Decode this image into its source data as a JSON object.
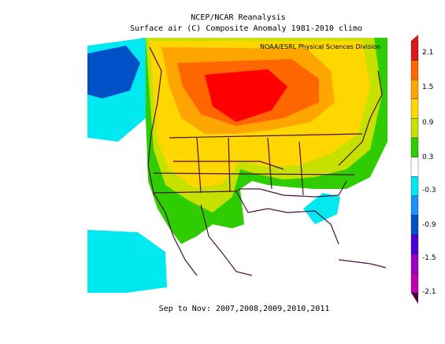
{
  "header": {
    "title": "NCEP/NCAR Reanalysis",
    "subtitle": "Surface air (C) Composite Anomaly 1981-2010 climo",
    "source": "NOAA/ESRL Physical Sciences Division"
  },
  "footer": {
    "period": "Sep to Nov: 2007,2008,2009,2010,2011"
  },
  "colorbar": {
    "labels": [
      "2.1",
      "1.5",
      "0.9",
      "0.3",
      "-0.3",
      "-0.9",
      "-1.5",
      "-2.1"
    ],
    "colors": [
      "#d7191c",
      "#ff6600",
      "#ffa500",
      "#ffd700",
      "#c6e000",
      "#2ecc00",
      "#ffffff",
      "#00e8f0",
      "#1e90ff",
      "#0050c8",
      "#4b00d6",
      "#9a00c8",
      "#c000b0"
    ]
  },
  "map": {
    "region": "North America",
    "anomaly_colors": {
      "strong_warm": "#ff0000",
      "warm": "#ff6600",
      "moderate_warm": "#ffa500",
      "mild_warm": "#ffd700",
      "slight_warm": "#c6e000",
      "near_normal_warm": "#2ecc00",
      "neutral": "#ffffff",
      "slight_cool": "#00e8f0",
      "cool": "#0050c8"
    }
  }
}
